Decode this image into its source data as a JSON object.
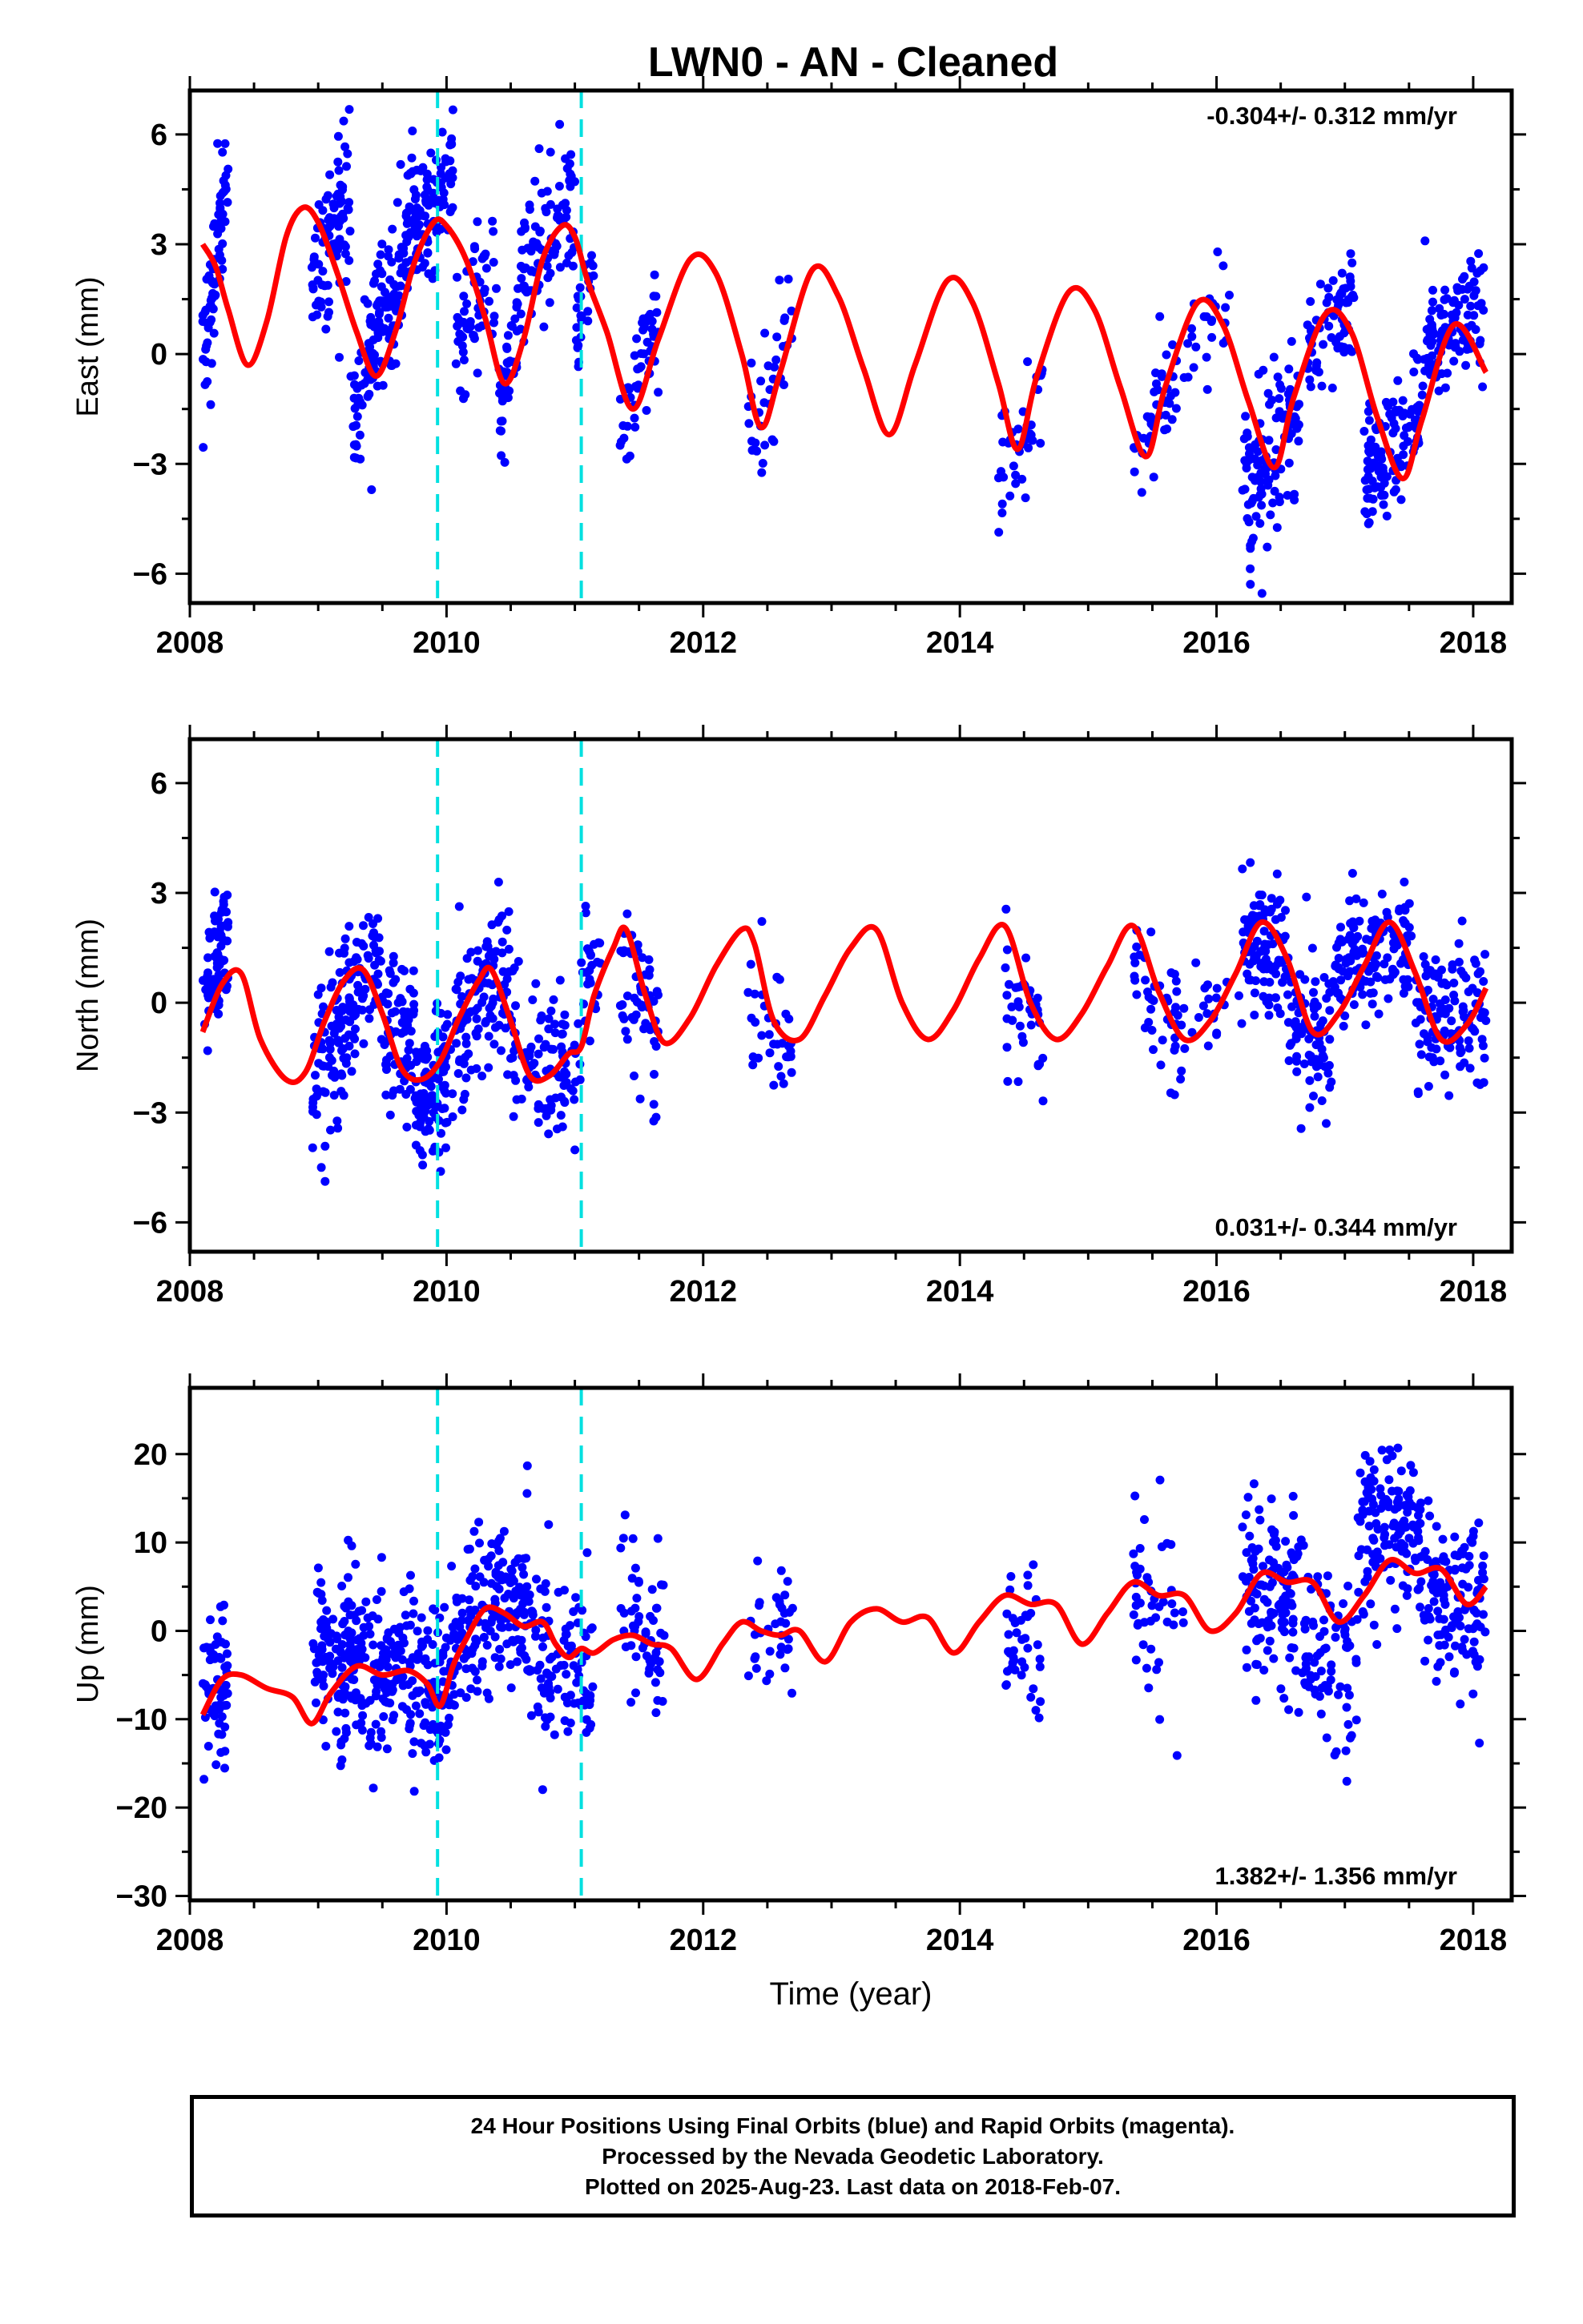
{
  "title": "LWN0  - AN - Cleaned",
  "footer": {
    "lines": [
      "24 Hour Positions Using Final Orbits (blue) and Rapid Orbits (magenta).",
      "Processed by the Nevada Geodetic Laboratory.",
      "Plotted on 2025-Aug-23. Last data on 2018-Feb-07."
    ]
  },
  "colors": {
    "points": "#0000ff",
    "fit": "#ff0000",
    "breaks": "#00e0e0",
    "axes": "#000000"
  },
  "chart_data": [
    {
      "type": "scatter",
      "title": "",
      "xlabel": "",
      "ylabel": "East (mm)",
      "xlim": [
        2008.0,
        2018.3
      ],
      "ylim": [
        -6.8,
        7.2
      ],
      "xticks": [
        2008,
        2010,
        2012,
        2014,
        2016,
        2018
      ],
      "yticks": [
        -6,
        -3,
        0,
        3,
        6
      ],
      "ytick_labels": [
        "−6",
        "−3",
        "0",
        "3",
        "6"
      ],
      "annotation": "-0.304+/- 0.312 mm/yr",
      "annotation_position": "top-right",
      "breaks": [
        2009.93,
        2011.05
      ],
      "fit": {
        "name": "model",
        "x": [
          2008.1,
          2008.2,
          2008.3,
          2008.45,
          2008.6,
          2008.75,
          2008.88,
          2009.0,
          2009.15,
          2009.3,
          2009.45,
          2009.6,
          2009.75,
          2009.9,
          2010.0,
          2010.15,
          2010.3,
          2010.45,
          2010.6,
          2010.75,
          2010.9,
          2011.0,
          2011.1,
          2011.25,
          2011.45,
          2011.65,
          2011.9,
          2012.1,
          2012.3,
          2012.45,
          2012.6,
          2012.85,
          2013.05,
          2013.25,
          2013.45,
          2013.65,
          2013.9,
          2014.1,
          2014.3,
          2014.45,
          2014.6,
          2014.85,
          2015.05,
          2015.25,
          2015.45,
          2015.6,
          2015.85,
          2016.05,
          2016.25,
          2016.45,
          2016.6,
          2016.85,
          2017.05,
          2017.25,
          2017.45,
          2017.6,
          2017.85,
          2018.1
        ],
        "y": [
          3.0,
          2.4,
          1.2,
          -0.3,
          0.9,
          3.2,
          4.0,
          3.6,
          2.2,
          0.6,
          -0.6,
          0.6,
          2.5,
          3.6,
          3.5,
          2.6,
          1.0,
          -0.8,
          0.4,
          2.6,
          3.5,
          3.2,
          2.0,
          0.6,
          -1.5,
          0.4,
          2.6,
          2.2,
          0.0,
          -2.0,
          -0.5,
          2.3,
          1.6,
          -0.4,
          -2.2,
          -0.3,
          2.0,
          1.4,
          -0.8,
          -2.6,
          -0.6,
          1.7,
          1.2,
          -0.9,
          -2.8,
          -0.9,
          1.4,
          0.8,
          -1.3,
          -3.1,
          -1.2,
          1.1,
          0.6,
          -1.7,
          -3.4,
          -1.8,
          0.8,
          -0.5
        ]
      },
      "clusters": [
        {
          "x": [
            2008.1,
            2008.3
          ],
          "y": [
            0.0,
            5.0
          ],
          "n": 70,
          "ydev": 1.2
        },
        {
          "x": [
            2008.95,
            2009.25
          ],
          "y": [
            2.0,
            4.5
          ],
          "n": 90,
          "ydev": 1.2
        },
        {
          "x": [
            2009.25,
            2009.5
          ],
          "y": [
            -2.0,
            1.5
          ],
          "n": 80,
          "ydev": 1.2
        },
        {
          "x": [
            2009.5,
            2009.75
          ],
          "y": [
            0.5,
            4.0
          ],
          "n": 80,
          "ydev": 1.2
        },
        {
          "x": [
            2009.75,
            2010.05
          ],
          "y": [
            3.5,
            5.0
          ],
          "n": 90,
          "ydev": 1.0
        },
        {
          "x": [
            2010.05,
            2010.4
          ],
          "y": [
            0.0,
            2.5
          ],
          "n": 60,
          "ydev": 1.2
        },
        {
          "x": [
            2010.4,
            2010.55
          ],
          "y": [
            -2.0,
            0.5
          ],
          "n": 40,
          "ydev": 1.1
        },
        {
          "x": [
            2010.55,
            2011.0
          ],
          "y": [
            2.0,
            4.5
          ],
          "n": 90,
          "ydev": 1.2
        },
        {
          "x": [
            2011.0,
            2011.15
          ],
          "y": [
            0.5,
            3.0
          ],
          "n": 25,
          "ydev": 1.0
        },
        {
          "x": [
            2011.35,
            2011.65
          ],
          "y": [
            -2.0,
            1.0
          ],
          "n": 50,
          "ydev": 1.2
        },
        {
          "x": [
            2012.35,
            2012.7
          ],
          "y": [
            -2.5,
            1.0
          ],
          "n": 35,
          "ydev": 1.3
        },
        {
          "x": [
            2014.3,
            2014.65
          ],
          "y": [
            -3.5,
            -1.0
          ],
          "n": 40,
          "ydev": 1.0
        },
        {
          "x": [
            2015.35,
            2015.7
          ],
          "y": [
            -3.0,
            -0.5
          ],
          "n": 40,
          "ydev": 1.0
        },
        {
          "x": [
            2015.7,
            2016.1
          ],
          "y": [
            0.0,
            1.5
          ],
          "n": 25,
          "ydev": 1.0
        },
        {
          "x": [
            2016.2,
            2016.65
          ],
          "y": [
            -4.0,
            -1.5
          ],
          "n": 110,
          "ydev": 1.1
        },
        {
          "x": [
            2016.7,
            2017.1
          ],
          "y": [
            0.0,
            1.5
          ],
          "n": 70,
          "ydev": 1.0
        },
        {
          "x": [
            2017.15,
            2017.6
          ],
          "y": [
            -3.5,
            -1.5
          ],
          "n": 110,
          "ydev": 1.0
        },
        {
          "x": [
            2017.6,
            2018.1
          ],
          "y": [
            0.0,
            1.5
          ],
          "n": 110,
          "ydev": 1.1
        }
      ]
    },
    {
      "type": "scatter",
      "title": "",
      "xlabel": "",
      "ylabel": "North (mm)",
      "xlim": [
        2008.0,
        2018.3
      ],
      "ylim": [
        -6.8,
        7.2
      ],
      "xticks": [
        2008,
        2010,
        2012,
        2014,
        2016,
        2018
      ],
      "yticks": [
        -6,
        -3,
        0,
        3,
        6
      ],
      "ytick_labels": [
        "−6",
        "−3",
        "0",
        "3",
        "6"
      ],
      "annotation": "0.031+/- 0.344 mm/yr",
      "annotation_position": "bottom-right",
      "breaks": [
        2009.93,
        2011.05
      ],
      "fit": {
        "name": "model",
        "x": [
          2008.1,
          2008.25,
          2008.4,
          2008.55,
          2008.75,
          2008.9,
          2009.05,
          2009.2,
          2009.35,
          2009.5,
          2009.65,
          2009.8,
          2009.95,
          2010.1,
          2010.25,
          2010.35,
          2010.5,
          2010.65,
          2010.8,
          2010.95,
          2011.05,
          2011.15,
          2011.3,
          2011.4,
          2011.55,
          2011.7,
          2011.9,
          2012.1,
          2012.3,
          2012.4,
          2012.55,
          2012.75,
          2012.95,
          2013.15,
          2013.35,
          2013.55,
          2013.75,
          2013.95,
          2014.15,
          2014.35,
          2014.55,
          2014.75,
          2014.95,
          2015.15,
          2015.35,
          2015.55,
          2015.75,
          2015.95,
          2016.15,
          2016.35,
          2016.55,
          2016.75,
          2016.95,
          2017.15,
          2017.35,
          2017.55,
          2017.75,
          2017.95,
          2018.1
        ],
        "y": [
          -0.8,
          0.5,
          0.8,
          -1.0,
          -2.1,
          -1.9,
          -0.5,
          0.6,
          0.9,
          -0.3,
          -1.8,
          -2.1,
          -1.6,
          -0.4,
          0.6,
          0.9,
          -0.5,
          -2.0,
          -2.0,
          -1.4,
          -1.2,
          0.2,
          1.5,
          2.0,
          0.2,
          -1.1,
          -0.4,
          1.0,
          2.0,
          1.6,
          -0.5,
          -1.0,
          0.2,
          1.5,
          2.0,
          0.0,
          -1.0,
          -0.2,
          1.2,
          2.1,
          0.0,
          -1.0,
          -0.3,
          1.0,
          2.1,
          0.3,
          -1.0,
          -0.5,
          0.8,
          2.2,
          1.2,
          -0.8,
          -0.3,
          1.0,
          2.2,
          0.8,
          -1.0,
          -0.6,
          0.4
        ]
      },
      "clusters": [
        {
          "x": [
            2008.1,
            2008.3
          ],
          "y": [
            0.0,
            2.0
          ],
          "n": 70,
          "ydev": 1.2
        },
        {
          "x": [
            2008.95,
            2009.2
          ],
          "y": [
            -2.0,
            -0.5
          ],
          "n": 70,
          "ydev": 1.4
        },
        {
          "x": [
            2009.2,
            2009.5
          ],
          "y": [
            0.0,
            1.0
          ],
          "n": 80,
          "ydev": 1.3
        },
        {
          "x": [
            2009.5,
            2009.75
          ],
          "y": [
            -1.0,
            -0.5
          ],
          "n": 70,
          "ydev": 1.3
        },
        {
          "x": [
            2009.75,
            2010.05
          ],
          "y": [
            -2.5,
            -2.0
          ],
          "n": 100,
          "ydev": 1.1
        },
        {
          "x": [
            2010.05,
            2010.3
          ],
          "y": [
            -1.0,
            0.5
          ],
          "n": 60,
          "ydev": 1.3
        },
        {
          "x": [
            2010.3,
            2010.5
          ],
          "y": [
            0.5,
            1.5
          ],
          "n": 50,
          "ydev": 1.3
        },
        {
          "x": [
            2010.5,
            2011.05
          ],
          "y": [
            -1.5,
            -2.0
          ],
          "n": 100,
          "ydev": 1.3
        },
        {
          "x": [
            2011.05,
            2011.2
          ],
          "y": [
            0.0,
            1.0
          ],
          "n": 25,
          "ydev": 1.2
        },
        {
          "x": [
            2011.35,
            2011.65
          ],
          "y": [
            1.0,
            -1.0
          ],
          "n": 55,
          "ydev": 1.2
        },
        {
          "x": [
            2012.35,
            2012.7
          ],
          "y": [
            0.0,
            -1.0
          ],
          "n": 35,
          "ydev": 1.2
        },
        {
          "x": [
            2014.35,
            2014.65
          ],
          "y": [
            0.5,
            -1.0
          ],
          "n": 40,
          "ydev": 1.1
        },
        {
          "x": [
            2015.35,
            2015.75
          ],
          "y": [
            1.0,
            -1.0
          ],
          "n": 45,
          "ydev": 1.1
        },
        {
          "x": [
            2015.75,
            2016.2
          ],
          "y": [
            0.0,
            0.0
          ],
          "n": 20,
          "ydev": 1.0
        },
        {
          "x": [
            2016.2,
            2016.55
          ],
          "y": [
            2.0,
            1.0
          ],
          "n": 100,
          "ydev": 1.2
        },
        {
          "x": [
            2016.55,
            2016.9
          ],
          "y": [
            -0.5,
            -1.0
          ],
          "n": 80,
          "ydev": 1.2
        },
        {
          "x": [
            2016.9,
            2017.55
          ],
          "y": [
            1.0,
            1.5
          ],
          "n": 130,
          "ydev": 1.1
        },
        {
          "x": [
            2017.55,
            2018.1
          ],
          "y": [
            -0.5,
            -0.5
          ],
          "n": 120,
          "ydev": 1.2
        }
      ]
    },
    {
      "type": "scatter",
      "title": "",
      "xlabel": "Time (year)",
      "ylabel": "Up (mm)",
      "xlim": [
        2008.0,
        2018.3
      ],
      "ylim": [
        -30.5,
        27.5
      ],
      "xticks": [
        2008,
        2010,
        2012,
        2014,
        2016,
        2018
      ],
      "yticks": [
        -30,
        -20,
        -10,
        0,
        10,
        20
      ],
      "ytick_labels": [
        "−30",
        "−20",
        "−10",
        "0",
        "10",
        "20"
      ],
      "annotation": "1.382+/- 1.356 mm/yr",
      "annotation_position": "bottom-right",
      "breaks": [
        2009.93,
        2011.05
      ],
      "fit": {
        "name": "model",
        "x": [
          2008.1,
          2008.25,
          2008.4,
          2008.6,
          2008.8,
          2008.95,
          2009.1,
          2009.3,
          2009.5,
          2009.7,
          2009.85,
          2009.95,
          2010.05,
          2010.15,
          2010.3,
          2010.45,
          2010.6,
          2010.75,
          2010.85,
          2010.95,
          2011.05,
          2011.15,
          2011.3,
          2011.45,
          2011.6,
          2011.75,
          2011.95,
          2012.15,
          2012.3,
          2012.45,
          2012.6,
          2012.75,
          2012.95,
          2013.15,
          2013.35,
          2013.55,
          2013.75,
          2013.95,
          2014.15,
          2014.35,
          2014.55,
          2014.75,
          2014.95,
          2015.15,
          2015.35,
          2015.55,
          2015.75,
          2015.95,
          2016.15,
          2016.35,
          2016.55,
          2016.75,
          2016.95,
          2017.15,
          2017.35,
          2017.55,
          2017.75,
          2017.95,
          2018.1
        ],
        "y": [
          -9.5,
          -5.5,
          -5.0,
          -6.5,
          -7.5,
          -10.5,
          -7.0,
          -4.0,
          -5.0,
          -4.5,
          -6.0,
          -8.5,
          -4.0,
          -1.0,
          2.5,
          2.0,
          0.5,
          1.0,
          -1.5,
          -3.0,
          -2.0,
          -2.5,
          -1.0,
          -0.5,
          -1.5,
          -2.0,
          -5.5,
          -1.5,
          1.0,
          0.0,
          -0.5,
          0.0,
          -3.5,
          1.0,
          2.5,
          1.0,
          1.5,
          -2.5,
          1.0,
          4.0,
          3.0,
          3.0,
          -1.5,
          2.0,
          5.5,
          4.0,
          4.0,
          0.0,
          2.0,
          6.5,
          5.5,
          5.5,
          1.0,
          4.0,
          8.0,
          6.5,
          7.0,
          3.0,
          5.0
        ]
      },
      "clusters": [
        {
          "x": [
            2008.1,
            2008.3
          ],
          "y": [
            -4.0,
            -6.0
          ],
          "n": 60,
          "ydev": 6.0
        },
        {
          "x": [
            2008.95,
            2009.5
          ],
          "y": [
            -3.0,
            -4.0
          ],
          "n": 170,
          "ydev": 6.0
        },
        {
          "x": [
            2009.5,
            2010.05
          ],
          "y": [
            -5.0,
            -6.0
          ],
          "n": 160,
          "ydev": 6.0
        },
        {
          "x": [
            2010.05,
            2010.35
          ],
          "y": [
            -2.0,
            3.0
          ],
          "n": 70,
          "ydev": 6.0
        },
        {
          "x": [
            2010.35,
            2010.65
          ],
          "y": [
            4.0,
            3.0
          ],
          "n": 90,
          "ydev": 6.0
        },
        {
          "x": [
            2010.65,
            2011.0
          ],
          "y": [
            -2.0,
            -4.0
          ],
          "n": 70,
          "ydev": 6.0
        },
        {
          "x": [
            2011.0,
            2011.15
          ],
          "y": [
            -5.0,
            -6.0
          ],
          "n": 30,
          "ydev": 5.0
        },
        {
          "x": [
            2011.35,
            2011.7
          ],
          "y": [
            3.0,
            -4.0
          ],
          "n": 55,
          "ydev": 6.0
        },
        {
          "x": [
            2012.35,
            2012.7
          ],
          "y": [
            -2.0,
            -1.0
          ],
          "n": 35,
          "ydev": 6.0
        },
        {
          "x": [
            2014.35,
            2014.65
          ],
          "y": [
            1.0,
            -3.0
          ],
          "n": 40,
          "ydev": 5.0
        },
        {
          "x": [
            2015.35,
            2015.75
          ],
          "y": [
            2.0,
            3.0
          ],
          "n": 45,
          "ydev": 7.0
        },
        {
          "x": [
            2016.2,
            2016.65
          ],
          "y": [
            5.0,
            4.0
          ],
          "n": 120,
          "ydev": 6.5
        },
        {
          "x": [
            2016.65,
            2017.1
          ],
          "y": [
            -1.0,
            -5.0
          ],
          "n": 80,
          "ydev": 6.5
        },
        {
          "x": [
            2017.1,
            2017.6
          ],
          "y": [
            12.0,
            11.0
          ],
          "n": 130,
          "ydev": 6.0
        },
        {
          "x": [
            2017.6,
            2018.1
          ],
          "y": [
            4.0,
            2.0
          ],
          "n": 120,
          "ydev": 6.0
        }
      ]
    }
  ]
}
